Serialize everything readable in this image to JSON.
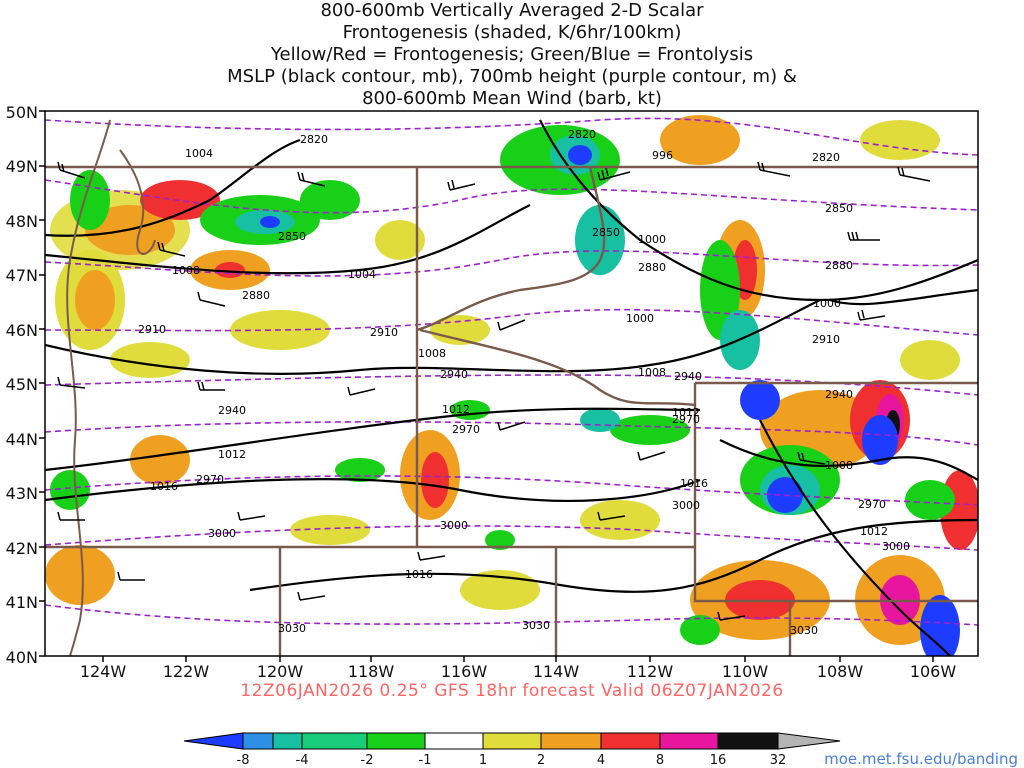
{
  "title_lines": [
    "800-600mb Vertically Averaged 2-D Scalar",
    "Frontogenesis (shaded, K/6hr/100km)",
    "Yellow/Red = Frontogenesis;  Green/Blue = Frontolysis",
    "MSLP (black contour, mb), 700mb height (purple contour, m) &",
    "800-600mb Mean Wind (barb, kt)"
  ],
  "lat_labels": [
    "50N",
    "49N",
    "48N",
    "47N",
    "46N",
    "45N",
    "44N",
    "43N",
    "42N",
    "41N",
    "40N"
  ],
  "lon_labels": [
    "124W",
    "122W",
    "120W",
    "118W",
    "116W",
    "114W",
    "112W",
    "110W",
    "108W",
    "106W"
  ],
  "valid_text": "12Z06JAN2026 0.25° GFS 18hr forecast Valid 06Z07JAN2026",
  "credit": "moe.met.fsu.edu/banding",
  "colorbar": {
    "labels": [
      "-8",
      "-4",
      "-2",
      "-1",
      "1",
      "2",
      "4",
      "8",
      "16",
      "32"
    ],
    "colors": [
      "#1e3cff",
      "#2e8fe6",
      "#16c0a0",
      "#18cc7a",
      "#18d018",
      "#ffffff",
      "#e0dc3c",
      "#f0a020",
      "#f06a10",
      "#f03030",
      "#e8169e",
      "#111111",
      "#b4b4b4"
    ]
  },
  "mslp_labels": [
    "1004",
    "1004",
    "1008",
    "1008",
    "1008",
    "1012",
    "1012",
    "1016",
    "1016",
    "996",
    "1000",
    "1000",
    "1000",
    "1008",
    "1012",
    "1016",
    "1012"
  ],
  "hgt_labels": [
    "2820",
    "2820",
    "2820",
    "2850",
    "2850",
    "2850",
    "2880",
    "2880",
    "2880",
    "2910",
    "2910",
    "2910",
    "2940",
    "2940",
    "2940",
    "2940",
    "2970",
    "2970",
    "2970",
    "2970",
    "3000",
    "3000",
    "3000",
    "3000",
    "3030",
    "3030",
    "3030"
  ],
  "colors": {
    "shade_pos1": "#e0dc3c",
    "shade_pos2": "#f0a020",
    "shade_pos3": "#f03030",
    "shade_neg1": "#18d018",
    "shade_neg2": "#16c0a0",
    "shade_neg3": "#1e3cff",
    "hgt": "#a020d0",
    "mslp": "#000000",
    "border": "#7a5a4a"
  }
}
